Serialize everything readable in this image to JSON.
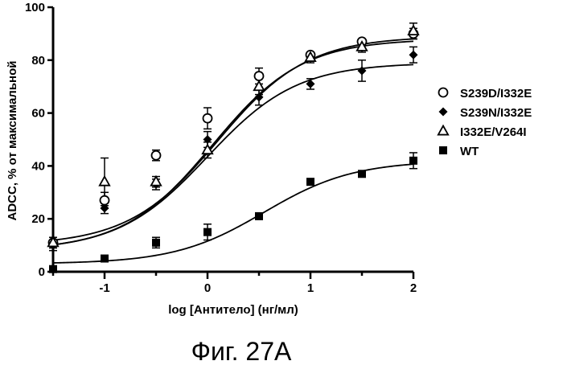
{
  "chart_data": {
    "type": "scatter",
    "xlabel": "log [Антитело] (нг/мл)",
    "ylabel": "ADCC, % от максимальной",
    "xlim": [
      -1.5,
      2
    ],
    "ylim": [
      0,
      100
    ],
    "x_ticks": [
      -1,
      0,
      1,
      2
    ],
    "x_tick_labels": [
      "-1",
      "0",
      "1",
      "2"
    ],
    "y_ticks": [
      0,
      20,
      40,
      60,
      80,
      100
    ],
    "y_tick_labels": [
      "0",
      "20",
      "40",
      "60",
      "80",
      "100"
    ],
    "legend_position": "right",
    "x": [
      -1.5,
      -1.0,
      -0.5,
      0.0,
      0.5,
      1.0,
      1.5,
      2.0
    ],
    "series": [
      {
        "name": "S239D/I332E",
        "marker": "open-circle",
        "values": [
          11,
          27,
          44,
          58,
          74,
          82,
          87,
          90
        ],
        "errors": [
          2,
          3,
          2,
          4,
          3,
          1,
          1,
          2
        ],
        "fit": {
          "bottom": 8,
          "top": 88,
          "log_ec50": 0.05,
          "hill": 1.0
        }
      },
      {
        "name": "S239N/I332E",
        "marker": "filled-diamond",
        "values": [
          10,
          24,
          33,
          50,
          66,
          71,
          76,
          82
        ],
        "errors": [
          2,
          2,
          2,
          3,
          3,
          2,
          4,
          3
        ],
        "fit": {
          "bottom": 8,
          "top": 79,
          "log_ec50": 0.0,
          "hill": 1.0
        }
      },
      {
        "name": "I332E/V264I",
        "marker": "open-triangle",
        "values": [
          11,
          34,
          34,
          46,
          70,
          81,
          85,
          91
        ],
        "errors": [
          2,
          9,
          2,
          3,
          3,
          2,
          2,
          3
        ],
        "fit": {
          "bottom": 10,
          "top": 89,
          "log_ec50": 0.1,
          "hill": 1.0
        }
      },
      {
        "name": "WT",
        "marker": "filled-square",
        "values": [
          1,
          5,
          11,
          15,
          21,
          34,
          37,
          42
        ],
        "errors": [
          1,
          1,
          2,
          3,
          1,
          1,
          1,
          3
        ],
        "fit": {
          "bottom": 3,
          "top": 42,
          "log_ec50": 0.55,
          "hill": 1.0
        }
      }
    ]
  },
  "caption": "Фиг. 27А"
}
